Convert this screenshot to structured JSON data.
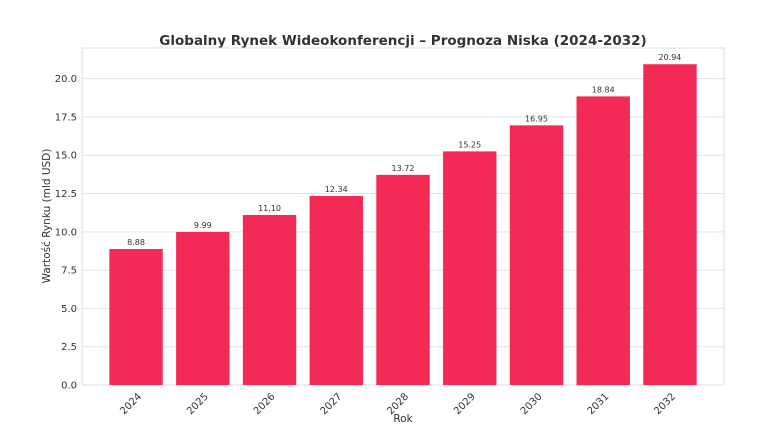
{
  "chart_data": {
    "type": "bar",
    "title": "Globalny Rynek Wideokonferencji – Prognoza Niska (2024-2032)",
    "xlabel": "Rok",
    "ylabel": "Wartość Rynku (mld USD)",
    "categories": [
      "2024",
      "2025",
      "2026",
      "2027",
      "2028",
      "2029",
      "2030",
      "2031",
      "2032"
    ],
    "values": [
      8.88,
      9.99,
      11.1,
      12.34,
      13.72,
      15.25,
      16.95,
      18.84,
      20.94
    ],
    "data_labels": [
      "8.88",
      "9.99",
      "11.10",
      "12.34",
      "13.72",
      "15.25",
      "16.95",
      "18.84",
      "20.94"
    ],
    "ylim": [
      0,
      22
    ],
    "yticks": [
      "0.0",
      "2.5",
      "5.0",
      "7.5",
      "10.0",
      "12.5",
      "15.0",
      "17.5",
      "20.0"
    ],
    "grid": true,
    "bar_color": "#f32a55"
  }
}
